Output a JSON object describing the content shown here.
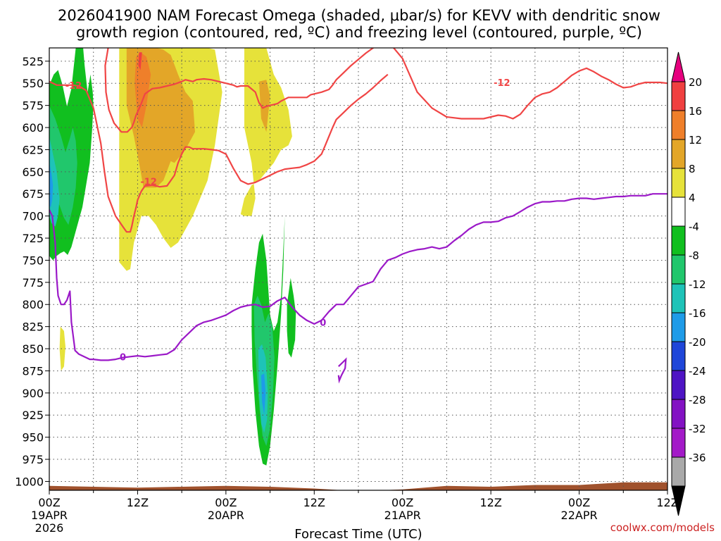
{
  "title_line1": "2026041900 NAM Forecast Omega (shaded, μbar/s) for KEVV with dendritic snow",
  "title_line2": "growth region (contoured, red, ºC) and freezing level (contoured, purple, ºC)",
  "credit": "coolwx.com/models",
  "chart_data": {
    "type": "time-height",
    "title": "2026041900 NAM Forecast Omega (shaded, μbar/s) for KEVV with dendritic snow growth region (contoured, red, ºC) and freezing level (contoured, purple, ºC)",
    "xlabel": "Forecast Time (UTC)",
    "ylabel": "",
    "xlim": [
      0,
      84
    ],
    "ylim": [
      1010,
      510
    ],
    "grid": true,
    "y_ticks": [
      525,
      550,
      575,
      600,
      625,
      650,
      675,
      700,
      725,
      750,
      775,
      800,
      825,
      850,
      875,
      900,
      925,
      950,
      975,
      1000
    ],
    "x_ticks": [
      {
        "hour": 0,
        "line1": "00Z",
        "line2": "19APR",
        "line3": "2026"
      },
      {
        "hour": 12,
        "line1": "12Z",
        "line2": "",
        "line3": ""
      },
      {
        "hour": 24,
        "line1": "00Z",
        "line2": "20APR",
        "line3": ""
      },
      {
        "hour": 36,
        "line1": "12Z",
        "line2": "",
        "line3": ""
      },
      {
        "hour": 48,
        "line1": "00Z",
        "line2": "21APR",
        "line3": ""
      },
      {
        "hour": 60,
        "line1": "12Z",
        "line2": "",
        "line3": ""
      },
      {
        "hour": 72,
        "line1": "00Z",
        "line2": "22APR",
        "line3": ""
      },
      {
        "hour": 84,
        "line1": "12Z",
        "line2": "",
        "line3": ""
      }
    ],
    "colorbar": {
      "labels": [
        "20",
        "16",
        "12",
        "8",
        "4",
        "-4",
        "-8",
        "-12",
        "-16",
        "-20",
        "-24",
        "-28",
        "-32",
        "-36"
      ],
      "colors": [
        "#e6007e",
        "#f04040",
        "#ef7f2a",
        "#e3a628",
        "#e6e23a",
        "#ffffff",
        "#11bf1f",
        "#21c76c",
        "#1ec3b8",
        "#1e9be8",
        "#1f46d9",
        "#4e14c4",
        "#8312c3",
        "#a31ac8",
        "#a9a9a9",
        "#000000"
      ]
    },
    "red_contour_label": "-12",
    "purple_contour_label": "0",
    "series": [
      {
        "name": "dendritic-12C-left",
        "color": "#f04545",
        "x": [
          0,
          0.5,
          1,
          1.5,
          2,
          3,
          4,
          5,
          6,
          7,
          7.5,
          8,
          9,
          10,
          10.5,
          11,
          11.2,
          11.5,
          11.8,
          12,
          12.5,
          13,
          14,
          15,
          16,
          17,
          17.5,
          18,
          18.5,
          19,
          19.5,
          20,
          21,
          22,
          23,
          24,
          25,
          26,
          27,
          28,
          29,
          30,
          31,
          32,
          33,
          34,
          35,
          36,
          37,
          37.5,
          38,
          38.5,
          39,
          40,
          41,
          42,
          43,
          44,
          45,
          46
        ],
        "y": [
          548,
          550,
          552,
          552,
          552,
          552,
          553,
          558,
          578,
          618,
          650,
          678,
          700,
          712,
          718,
          718,
          712,
          700,
          690,
          682,
          672,
          666,
          665,
          667,
          666,
          654,
          640,
          630,
          622,
          622,
          624,
          624,
          624,
          625,
          626,
          630,
          646,
          660,
          664,
          662,
          658,
          654,
          650,
          647,
          646,
          645,
          642,
          638,
          630,
          620,
          610,
          600,
          591,
          583,
          575,
          568,
          562,
          555,
          547,
          540
        ]
      },
      {
        "name": "dendritic-12C-left-upper",
        "color": "#f04545",
        "x": [
          8.0,
          7.6,
          7.7,
          8.1,
          8.8,
          9.8,
          10.6,
          11.2,
          11.5,
          11.8,
          12.4,
          13,
          14,
          15,
          16,
          17,
          18,
          18.5,
          19,
          19.5,
          20,
          21,
          22,
          23,
          24,
          25,
          25.5,
          26,
          27,
          28,
          28.5,
          29,
          29.5,
          30,
          30.5,
          31,
          31.5,
          32,
          32.5,
          33,
          34,
          35,
          35.5,
          36,
          37,
          38,
          38.5,
          39,
          40,
          41,
          42,
          43,
          44,
          45,
          46
        ],
        "y": [
          510,
          530,
          560,
          580,
          595,
          605,
          605,
          600,
          594,
          586,
          575,
          562,
          556,
          555,
          553,
          551,
          548,
          546,
          547,
          548,
          546,
          545,
          546,
          548,
          550,
          552,
          554,
          553,
          553,
          560,
          572,
          578,
          576,
          575,
          574,
          573,
          570,
          568,
          566,
          566,
          566,
          566,
          563,
          562,
          560,
          557,
          552,
          546,
          538,
          530,
          523,
          516,
          510,
          505,
          502
        ]
      },
      {
        "name": "dendritic-12C-right",
        "color": "#f04545",
        "x": [
          46,
          48,
          50,
          52,
          54,
          56,
          58,
          59,
          60,
          61,
          62,
          63,
          64,
          65,
          66,
          67,
          68,
          69,
          70,
          71,
          72,
          73,
          74,
          75,
          76,
          77,
          78,
          79,
          80,
          81,
          82,
          83,
          84
        ],
        "y": [
          502,
          522,
          560,
          578,
          588,
          590,
          590,
          590,
          588,
          586,
          587,
          590,
          585,
          575,
          566,
          562,
          560,
          555,
          548,
          541,
          536,
          533,
          537,
          542,
          546,
          551,
          555,
          554,
          551,
          549,
          549,
          549,
          550
        ]
      },
      {
        "name": "freezing-level-0C",
        "color": "#9b19c8",
        "x": [
          0,
          0.4,
          0.8,
          1,
          1.2,
          1.6,
          2,
          2.4,
          2.8,
          3,
          3.5,
          4,
          5,
          5.5,
          6,
          7,
          8,
          9,
          10,
          11,
          12,
          13,
          14,
          15,
          16,
          17,
          18,
          19,
          20,
          21,
          22,
          23,
          24,
          25,
          26,
          27,
          28,
          29,
          30,
          31,
          32,
          33,
          34,
          35,
          36,
          37,
          38,
          39,
          40,
          41,
          42,
          43,
          44,
          45,
          46,
          47,
          48,
          49,
          50,
          51,
          52,
          53,
          54,
          55,
          56,
          57,
          58,
          59,
          60,
          61,
          62,
          63,
          64,
          65,
          66,
          67,
          68,
          69,
          70,
          71,
          72,
          73,
          74,
          75,
          76,
          77,
          78,
          79,
          80,
          81,
          82,
          83,
          84
        ],
        "y": [
          693,
          700,
          730,
          770,
          790,
          800,
          800,
          795,
          785,
          820,
          852,
          856,
          860,
          862,
          862,
          863,
          863,
          862,
          860,
          859,
          858,
          859,
          858,
          857,
          856,
          851,
          840,
          832,
          824,
          820,
          818,
          815,
          812,
          807,
          803,
          801,
          800,
          803,
          802,
          796,
          792,
          803,
          812,
          818,
          822,
          818,
          808,
          800,
          800,
          790,
          780,
          777,
          774,
          760,
          750,
          747,
          743,
          740,
          738,
          737,
          735,
          737,
          735,
          728,
          722,
          715,
          710,
          707,
          707,
          706,
          702,
          700,
          695,
          690,
          686,
          684,
          684,
          683,
          683,
          681,
          680,
          680,
          681,
          680,
          679,
          678,
          678,
          677,
          677,
          677,
          675,
          675,
          675
        ]
      }
    ],
    "omega_regions": [
      {
        "name": "omega-green-left",
        "value_class": -4,
        "color": "#11bf1f",
        "x": [
          0,
          0.6,
          1.2,
          1.8,
          2.4,
          3.0,
          3.6,
          4.2,
          4.8,
          5.2,
          5.6,
          5.9,
          6,
          5.8,
          5.5,
          5.0,
          4.5,
          4.0,
          3.5,
          3.0,
          2.5,
          2.0,
          1.5,
          1.0,
          0.5,
          0
        ],
        "y": [
          552,
          540,
          535,
          552,
          576,
          556,
          510,
          470,
          530,
          560,
          540,
          560,
          575,
          605,
          640,
          665,
          690,
          705,
          720,
          735,
          744,
          740,
          742,
          745,
          750,
          745
        ]
      },
      {
        "name": "omega-teal-left",
        "value_class": -8,
        "color": "#21c76c",
        "x": [
          0,
          0.8,
          1.6,
          2.2,
          2.8,
          3.2,
          3.6,
          3.8,
          3.6,
          3.2,
          2.6,
          2.0,
          1.4,
          0.8,
          0
        ],
        "y": [
          575,
          590,
          610,
          628,
          612,
          600,
          615,
          640,
          668,
          690,
          710,
          702,
          688,
          680,
          690
        ]
      },
      {
        "name": "omega-cyan-left",
        "value_class": -12,
        "color": "#1ec3b8",
        "x": [
          0,
          0.5,
          1.0,
          1.4,
          1.2,
          0.8,
          0.3,
          0
        ],
        "y": [
          610,
          630,
          650,
          680,
          700,
          712,
          708,
          700
        ]
      },
      {
        "name": "omega-blue-left",
        "value_class": -16,
        "color": "#1e9be8",
        "x": [
          0,
          0.3,
          0.5,
          0.4,
          0.2,
          0
        ],
        "y": [
          640,
          652,
          665,
          682,
          690,
          688
        ]
      },
      {
        "name": "omega-yellow-left",
        "value_class": 4,
        "color": "#e6e23a",
        "x": [
          9.5,
          10.5,
          11.5,
          12.5,
          13.5,
          14.5,
          15.5,
          16.5,
          17.5,
          18.5,
          20,
          21.5,
          22.5,
          23.5,
          22.5,
          21.5,
          20.5,
          19.5,
          18.5,
          17.5,
          16.5,
          15.5,
          14.5,
          13.5,
          12.5,
          11.5,
          11.0,
          10.5,
          9.5
        ],
        "y": [
          510,
          510,
          510,
          510,
          510,
          510,
          510,
          510,
          510,
          510,
          510,
          510,
          512,
          560,
          620,
          660,
          680,
          700,
          715,
          730,
          736,
          725,
          710,
          700,
          700,
          730,
          760,
          762,
          752
        ]
      },
      {
        "name": "omega-orange-left",
        "value_class": 8,
        "color": "#e3a628",
        "x": [
          10.5,
          11.5,
          12.5,
          13.5,
          14.5,
          15.5,
          16.5,
          17.5,
          18.5,
          19.5,
          19.8,
          18.5,
          17.5,
          17.0,
          16.5,
          15.5,
          14.5,
          13.5,
          12.8,
          12.2,
          11.5,
          10.5
        ],
        "y": [
          510,
          510,
          510,
          510,
          510,
          512,
          518,
          540,
          560,
          570,
          605,
          625,
          635,
          640,
          638,
          660,
          668,
          668,
          668,
          640,
          610,
          575
        ]
      },
      {
        "name": "omega-darkorange-left",
        "value_class": 12,
        "color": "#ef7f2a",
        "x": [
          11.8,
          12.4,
          13.2,
          13.8,
          13.2,
          12.6,
          12.0,
          11.6
        ],
        "y": [
          520,
          515,
          520,
          540,
          575,
          600,
          590,
          550
        ]
      },
      {
        "name": "omega-red-left",
        "value_class": 16,
        "color": "#f04040",
        "x": [
          12.2,
          12.6,
          12.4,
          12.1
        ],
        "y": [
          515,
          515,
          535,
          530
        ]
      },
      {
        "name": "omega-yellow-mid",
        "value_class": 4,
        "color": "#e6e23a",
        "x": [
          26.5,
          27.5,
          28.5,
          29.5,
          30.5,
          31.5,
          32.5,
          33.0,
          32.5,
          31.5,
          30.5,
          29.5,
          28.5,
          27.5,
          26.5,
          26.0,
          26.5,
          27.5,
          28.0,
          27.5,
          26.5
        ],
        "y": [
          510,
          510,
          510,
          510,
          540,
          555,
          580,
          610,
          620,
          625,
          640,
          650,
          660,
          665,
          680,
          698,
          700,
          700,
          680,
          640,
          600
        ]
      },
      {
        "name": "omega-orange-mid",
        "value_class": 8,
        "color": "#e3a628",
        "x": [
          28.5,
          29.5,
          30.0,
          29.5,
          28.8
        ],
        "y": [
          548,
          546,
          565,
          605,
          590
        ]
      },
      {
        "name": "omega-yellow-spot",
        "value_class": 4,
        "color": "#e6e23a",
        "x": [
          1.5,
          2.0,
          2.2,
          2.0,
          1.6,
          1.4
        ],
        "y": [
          825,
          830,
          848,
          870,
          875,
          850
        ]
      },
      {
        "name": "omega-green-mid",
        "value_class": -4,
        "color": "#11bf1f",
        "x": [
          27.5,
          28.0,
          28.5,
          29.0,
          29.5,
          30.0,
          30.5,
          31.0,
          31.5,
          32.0,
          31.8,
          31.5,
          31.0,
          30.5,
          30.0,
          29.5,
          29.0,
          28.5,
          28.0,
          27.6,
          27.5
        ],
        "y": [
          800,
          760,
          730,
          720,
          750,
          812,
          830,
          820,
          790,
          700,
          760,
          810,
          870,
          920,
          960,
          982,
          980,
          960,
          920,
          870,
          830
        ]
      },
      {
        "name": "omega-green-right",
        "value_class": -4,
        "color": "#11bf1f",
        "x": [
          32.3,
          32.8,
          33.2,
          33.5,
          33.4,
          32.9,
          32.5,
          32.3
        ],
        "y": [
          800,
          770,
          790,
          810,
          840,
          860,
          855,
          830
        ]
      },
      {
        "name": "omega-teal-mid",
        "value_class": -8,
        "color": "#21c76c",
        "x": [
          27.8,
          28.3,
          28.8,
          29.3,
          29.8,
          30.3,
          30.6,
          30.4,
          30.0,
          29.5,
          29.0,
          28.6,
          28.2,
          27.9
        ],
        "y": [
          800,
          790,
          800,
          820,
          810,
          825,
          860,
          900,
          940,
          960,
          950,
          920,
          880,
          840
        ]
      },
      {
        "name": "omega-cyan-mid",
        "value_class": -12,
        "color": "#1ec3b8",
        "x": [
          28.4,
          28.9,
          29.4,
          29.7,
          29.6,
          29.2,
          28.8,
          28.5
        ],
        "y": [
          850,
          845,
          860,
          900,
          930,
          945,
          935,
          900
        ]
      },
      {
        "name": "omega-blue-mid",
        "value_class": -16,
        "color": "#1e9be8",
        "x": [
          28.8,
          29.2,
          29.4,
          29.2,
          28.9
        ],
        "y": [
          880,
          878,
          900,
          925,
          910
        ]
      }
    ],
    "terrain": {
      "name": "surface-ground",
      "color": "#a0522d",
      "x": [
        0,
        6,
        12,
        18,
        24,
        30,
        36,
        42,
        48,
        54,
        60,
        66,
        72,
        78,
        84
      ],
      "top": [
        1005,
        1006,
        1007,
        1006,
        1005,
        1006,
        1008,
        1011,
        1009,
        1005,
        1006,
        1004,
        1004,
        1001,
        1001
      ],
      "bottom": 1013
    }
  }
}
